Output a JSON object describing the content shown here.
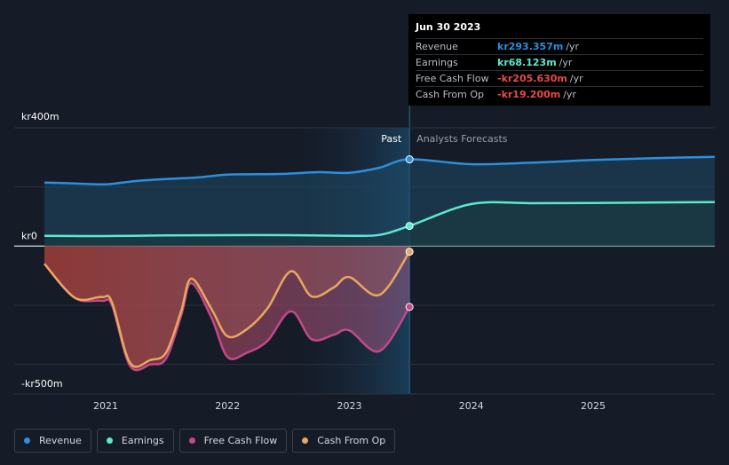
{
  "chart_data": {
    "type": "area",
    "currency": "kr",
    "y_axis": {
      "top_label": "kr400m",
      "zero_label": "kr0",
      "bottom_label": "-kr500m",
      "min": -500,
      "max": 400
    },
    "x_axis": {
      "ticks": [
        "2021",
        "2022",
        "2023",
        "2024",
        "2025"
      ]
    },
    "region_labels": {
      "past": "Past",
      "forecast": "Analysts Forecasts"
    },
    "series": [
      {
        "name": "Revenue",
        "color": "#2d8fde",
        "points": [
          [
            "2020-07-01",
            215
          ],
          [
            "2020-10-01",
            212
          ],
          [
            "2021-01-01",
            209
          ],
          [
            "2021-04-01",
            220
          ],
          [
            "2021-07-01",
            227
          ],
          [
            "2021-10-01",
            232
          ],
          [
            "2022-01-01",
            242
          ],
          [
            "2022-04-01",
            243
          ],
          [
            "2022-07-01",
            245
          ],
          [
            "2022-10-01",
            250
          ],
          [
            "2023-01-01",
            248
          ],
          [
            "2023-04-01",
            265
          ],
          [
            "2023-06-30",
            293.357
          ],
          [
            "2023-12-31",
            277
          ],
          [
            "2024-06-30",
            282
          ],
          [
            "2024-12-31",
            291
          ],
          [
            "2025-06-30",
            297
          ],
          [
            "2025-12-31",
            302
          ]
        ]
      },
      {
        "name": "Earnings",
        "color": "#5ee8d0",
        "points": [
          [
            "2020-07-01",
            35
          ],
          [
            "2021-01-01",
            34
          ],
          [
            "2021-07-01",
            36
          ],
          [
            "2022-01-01",
            37
          ],
          [
            "2022-07-01",
            37
          ],
          [
            "2023-01-01",
            35
          ],
          [
            "2023-04-01",
            38
          ],
          [
            "2023-06-30",
            68.123
          ],
          [
            "2023-12-31",
            142
          ],
          [
            "2024-06-30",
            145
          ],
          [
            "2024-12-31",
            146
          ],
          [
            "2025-12-31",
            149
          ]
        ]
      },
      {
        "name": "Free Cash Flow",
        "color": "#c4498a",
        "points": [
          [
            "2020-07-01",
            -60
          ],
          [
            "2020-10-01",
            -175
          ],
          [
            "2020-12-20",
            -185
          ],
          [
            "2021-01-20",
            -200
          ],
          [
            "2021-03-15",
            -405
          ],
          [
            "2021-05-15",
            -400
          ],
          [
            "2021-07-01",
            -380
          ],
          [
            "2021-08-15",
            -235
          ],
          [
            "2021-09-15",
            -125
          ],
          [
            "2021-11-15",
            -245
          ],
          [
            "2022-01-01",
            -375
          ],
          [
            "2022-03-01",
            -360
          ],
          [
            "2022-05-01",
            -320
          ],
          [
            "2022-07-10",
            -220
          ],
          [
            "2022-09-10",
            -315
          ],
          [
            "2022-11-15",
            -300
          ],
          [
            "2023-01-01",
            -285
          ],
          [
            "2023-04-01",
            -355
          ],
          [
            "2023-06-30",
            -205.63
          ]
        ]
      },
      {
        "name": "Cash From Op",
        "color": "#e8a860",
        "points": [
          [
            "2020-07-01",
            -60
          ],
          [
            "2020-10-01",
            -175
          ],
          [
            "2020-12-20",
            -172
          ],
          [
            "2021-01-20",
            -190
          ],
          [
            "2021-03-15",
            -395
          ],
          [
            "2021-05-15",
            -385
          ],
          [
            "2021-07-01",
            -360
          ],
          [
            "2021-08-15",
            -220
          ],
          [
            "2021-09-15",
            -110
          ],
          [
            "2021-11-15",
            -215
          ],
          [
            "2022-01-01",
            -305
          ],
          [
            "2022-03-01",
            -280
          ],
          [
            "2022-05-01",
            -210
          ],
          [
            "2022-07-10",
            -85
          ],
          [
            "2022-09-10",
            -170
          ],
          [
            "2022-11-15",
            -140
          ],
          [
            "2023-01-01",
            -105
          ],
          [
            "2023-04-01",
            -165
          ],
          [
            "2023-06-30",
            -19.2
          ]
        ]
      }
    ]
  },
  "tooltip": {
    "date": "Jun 30 2023",
    "rows": [
      {
        "label": "Revenue",
        "value": "kr293.357m",
        "unit": "/yr",
        "color": "#2d8fde"
      },
      {
        "label": "Earnings",
        "value": "kr68.123m",
        "unit": "/yr",
        "color": "#5ee8d0"
      },
      {
        "label": "Free Cash Flow",
        "value": "-kr205.630m",
        "unit": "/yr",
        "color": "#e84a4a"
      },
      {
        "label": "Cash From Op",
        "value": "-kr19.200m",
        "unit": "/yr",
        "color": "#e84a4a"
      }
    ]
  },
  "legend": [
    {
      "label": "Revenue",
      "color": "#2d8fde"
    },
    {
      "label": "Earnings",
      "color": "#5ee8d0"
    },
    {
      "label": "Free Cash Flow",
      "color": "#c4498a"
    },
    {
      "label": "Cash From Op",
      "color": "#e8a860"
    }
  ]
}
